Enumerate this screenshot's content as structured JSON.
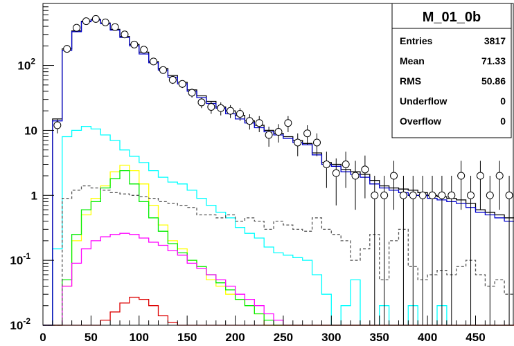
{
  "stats_box": {
    "title": "M_01_0b",
    "rows": [
      {
        "label": "Entries",
        "value": "3817"
      },
      {
        "label": "Mean",
        "value": "71.33"
      },
      {
        "label": "RMS",
        "value": "50.86"
      },
      {
        "label": "Underflow",
        "value": "0"
      },
      {
        "label": "Overflow",
        "value": "0"
      }
    ]
  },
  "chart_data": {
    "type": "histogram",
    "title": "",
    "xlabel": "",
    "ylabel": "",
    "xlim": [
      0,
      490
    ],
    "ylim": [
      0.01,
      900
    ],
    "yscale": "log",
    "grid": false,
    "legend": "none",
    "x_ticks": [
      "0",
      "50",
      "100",
      "150",
      "200",
      "250",
      "300",
      "350",
      "400",
      "450"
    ],
    "x_tick_values": [
      0,
      50,
      100,
      150,
      200,
      250,
      300,
      350,
      400,
      450
    ],
    "y_ticks": [
      {
        "value": 0.01,
        "base": "10",
        "exp": "-2"
      },
      {
        "value": 0.1,
        "base": "10",
        "exp": "-1"
      },
      {
        "value": 1,
        "base": "1",
        "exp": ""
      },
      {
        "value": 10,
        "base": "10",
        "exp": ""
      },
      {
        "value": 100,
        "base": "10",
        "exp": "2"
      }
    ],
    "bin_start": 0,
    "bin_width": 10,
    "series": [
      {
        "style": "solid",
        "color": "#00ffff",
        "values": [
          0.01,
          0.15,
          8,
          10,
          11.5,
          10.5,
          8.5,
          7,
          5,
          4,
          3.2,
          2.4,
          1.9,
          1.6,
          1.5,
          1.2,
          0.9,
          0.7,
          0.55,
          0.45,
          0.32,
          0.26,
          0.22,
          0.16,
          0.13,
          0.12,
          0.11,
          0.1,
          0.06,
          0.03,
          0.01,
          0.02,
          0.05,
          0.01,
          0.01,
          0.02,
          0.01,
          0.01,
          0.02,
          0.01,
          0.01,
          0.02,
          0.01,
          0.01,
          0.01,
          0.01,
          0.01,
          0.01,
          0.01
        ]
      },
      {
        "style": "solid",
        "color": "#ffff00",
        "values": [
          0.01,
          0.01,
          0.04,
          0.2,
          0.5,
          0.9,
          1.4,
          2.3,
          2.9,
          2.4,
          1.5,
          0.7,
          0.35,
          0.2,
          0.15,
          0.1,
          0.08,
          0.05,
          0.04,
          0.03,
          0.025,
          0.02,
          0.015,
          0.01,
          0.01,
          0.01,
          0.01,
          0.01,
          0.01,
          0.01,
          0.01,
          0.01,
          0.01,
          0.01,
          0.01,
          0.01,
          0.01,
          0.01,
          0.01,
          0.01,
          0.01,
          0.01,
          0.01,
          0.01,
          0.01,
          0.01,
          0.01,
          0.01,
          0.01
        ]
      },
      {
        "style": "solid",
        "color": "#00ee00",
        "values": [
          0.01,
          0.01,
          0.05,
          0.25,
          0.6,
          0.8,
          1.3,
          1.8,
          2.4,
          1.5,
          0.8,
          0.45,
          0.28,
          0.18,
          0.13,
          0.1,
          0.08,
          0.06,
          0.045,
          0.035,
          0.025,
          0.02,
          0.015,
          0.012,
          0.01,
          0.01,
          0.01,
          0.01,
          0.01,
          0.01,
          0.01,
          0.01,
          0.01,
          0.01,
          0.01,
          0.01,
          0.01,
          0.01,
          0.01,
          0.01,
          0.01,
          0.01,
          0.01,
          0.01,
          0.01,
          0.01,
          0.01,
          0.01,
          0.01
        ]
      },
      {
        "style": "solid",
        "color": "#ff00ff",
        "values": [
          0.01,
          0.01,
          0.04,
          0.09,
          0.15,
          0.2,
          0.23,
          0.25,
          0.26,
          0.25,
          0.22,
          0.19,
          0.17,
          0.14,
          0.12,
          0.09,
          0.075,
          0.06,
          0.05,
          0.04,
          0.03,
          0.025,
          0.02,
          0.015,
          0.012,
          0.01,
          0.01,
          0.01,
          0.01,
          0.01,
          0.01,
          0.01,
          0.01,
          0.01,
          0.01,
          0.01,
          0.01,
          0.01,
          0.01,
          0.01,
          0.01,
          0.01,
          0.01,
          0.01,
          0.01,
          0.01,
          0.01,
          0.01,
          0.01
        ]
      },
      {
        "style": "solid",
        "color": "#dd0000",
        "values": [
          0.01,
          0.01,
          0.01,
          0.01,
          0.01,
          0.01,
          0.012,
          0.016,
          0.022,
          0.027,
          0.025,
          0.02,
          0.014,
          0.011,
          0.01,
          0.01,
          0.01,
          0.01,
          0.01,
          0.01,
          0.01,
          0.01,
          0.01,
          0.01,
          0.01,
          0.01,
          0.01,
          0.01,
          0.01,
          0.01,
          0.01,
          0.01,
          0.01,
          0.01,
          0.01,
          0.01,
          0.01,
          0.01,
          0.01,
          0.01,
          0.01,
          0.01,
          0.01,
          0.01,
          0.01,
          0.01,
          0.01,
          0.01,
          0.01
        ]
      },
      {
        "style": "dashed",
        "color": "#555555",
        "values": [
          0.01,
          0.01,
          0.9,
          1.2,
          1.4,
          1.3,
          1.2,
          1.1,
          1.05,
          1.0,
          0.95,
          0.9,
          0.8,
          0.75,
          0.7,
          0.65,
          0.5,
          0.5,
          0.45,
          0.5,
          0.4,
          0.45,
          0.4,
          0.3,
          0.4,
          0.35,
          0.3,
          0.28,
          0.45,
          0.3,
          0.25,
          0.2,
          0.1,
          0.15,
          0.25,
          0.05,
          0.2,
          0.3,
          0.08,
          0.05,
          0.06,
          0.07,
          0.06,
          0.08,
          0.1,
          0.06,
          0.04,
          0.05,
          0.03
        ]
      },
      {
        "style": "solid",
        "color": "#000000",
        "values": [
          0.01,
          15,
          180,
          340,
          480,
          510,
          450,
          360,
          280,
          210,
          160,
          115,
          90,
          70,
          55,
          42,
          34,
          28,
          23,
          20,
          17,
          14,
          12,
          10,
          9,
          8,
          7,
          6.3,
          4.5,
          3.2,
          3.0,
          2.5,
          2.3,
          2.1,
          1.7,
          1.4,
          1.3,
          1.25,
          1.2,
          1.1,
          1.0,
          0.95,
          0.9,
          0.85,
          0.75,
          0.6,
          0.55,
          0.5,
          0.45
        ]
      },
      {
        "style": "solid",
        "color": "#0000cc",
        "values": [
          0.01,
          14,
          170,
          330,
          470,
          500,
          440,
          350,
          270,
          200,
          150,
          110,
          85,
          66,
          52,
          40,
          32,
          26,
          22,
          18,
          15,
          13,
          11,
          9.5,
          8.5,
          7.5,
          6.5,
          6.0,
          4.2,
          3.0,
          2.8,
          2.3,
          2.1,
          1.9,
          1.5,
          1.3,
          1.2,
          1.1,
          1.0,
          1.0,
          0.9,
          0.85,
          0.8,
          0.75,
          0.65,
          0.55,
          0.5,
          0.45,
          0.4
        ]
      }
    ],
    "data_points": {
      "x": [
        15,
        25,
        35,
        45,
        55,
        65,
        75,
        85,
        95,
        105,
        115,
        125,
        135,
        145,
        155,
        165,
        175,
        185,
        195,
        205,
        215,
        225,
        235,
        245,
        255,
        265,
        275,
        285,
        295,
        305,
        315,
        325,
        335,
        345,
        355,
        365,
        375,
        385,
        395,
        405,
        415,
        425,
        435,
        445,
        455,
        465,
        475,
        485
      ],
      "y": [
        12,
        180,
        380,
        480,
        520,
        460,
        390,
        300,
        210,
        175,
        115,
        85,
        60,
        52,
        38,
        27,
        23,
        22,
        20,
        18,
        14,
        13,
        8.5,
        9.5,
        13,
        6.5,
        9,
        6.5,
        3,
        2.2,
        3,
        2,
        2.5,
        1,
        1,
        2,
        1,
        1,
        1,
        1,
        1,
        1,
        2,
        1,
        2,
        1,
        2,
        1
      ],
      "y_err": [
        3,
        13,
        19,
        22,
        23,
        21,
        20,
        17,
        14,
        13,
        11,
        9,
        8,
        7,
        6,
        5,
        5,
        5,
        4.5,
        4,
        3.7,
        3.6,
        2.9,
        3,
        3.6,
        2.5,
        3,
        2.5,
        1.7,
        1.5,
        1.7,
        1.4,
        1.6,
        1,
        1,
        1.4,
        1,
        1,
        1,
        1,
        1,
        1,
        1.4,
        1,
        1.4,
        1,
        1.4,
        1
      ]
    }
  }
}
